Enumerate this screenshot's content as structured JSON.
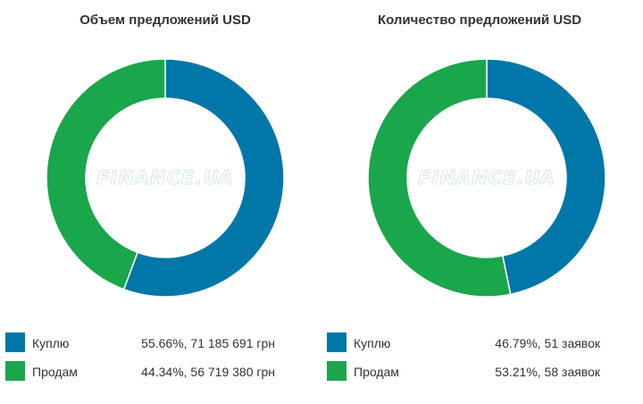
{
  "colors": {
    "buy": "#0077a8",
    "sell": "#1aa64a"
  },
  "watermark": "FINANCE.UA",
  "chart_data": [
    {
      "type": "pie",
      "title": "Объем предложений USD",
      "slices": [
        {
          "label": "Куплю",
          "percent": 55.66,
          "value": "71 185 691 грн",
          "color": "#0077a8"
        },
        {
          "label": "Продам",
          "percent": 44.34,
          "value": "56 719 380 грн",
          "color": "#1aa64a"
        }
      ],
      "legend": [
        {
          "label": "Куплю",
          "text": "55.66%, 71 185 691 грн"
        },
        {
          "label": "Продам",
          "text": "44.34%, 56 719 380 грн"
        }
      ]
    },
    {
      "type": "pie",
      "title": "Количество предложений USD",
      "slices": [
        {
          "label": "Куплю",
          "percent": 46.79,
          "value": "51 заявок",
          "color": "#0077a8"
        },
        {
          "label": "Продам",
          "percent": 53.21,
          "value": "58 заявок",
          "color": "#1aa64a"
        }
      ],
      "legend": [
        {
          "label": "Куплю",
          "text": "46.79%, 51 заявок"
        },
        {
          "label": "Продам",
          "text": "53.21%, 58 заявок"
        }
      ]
    }
  ]
}
